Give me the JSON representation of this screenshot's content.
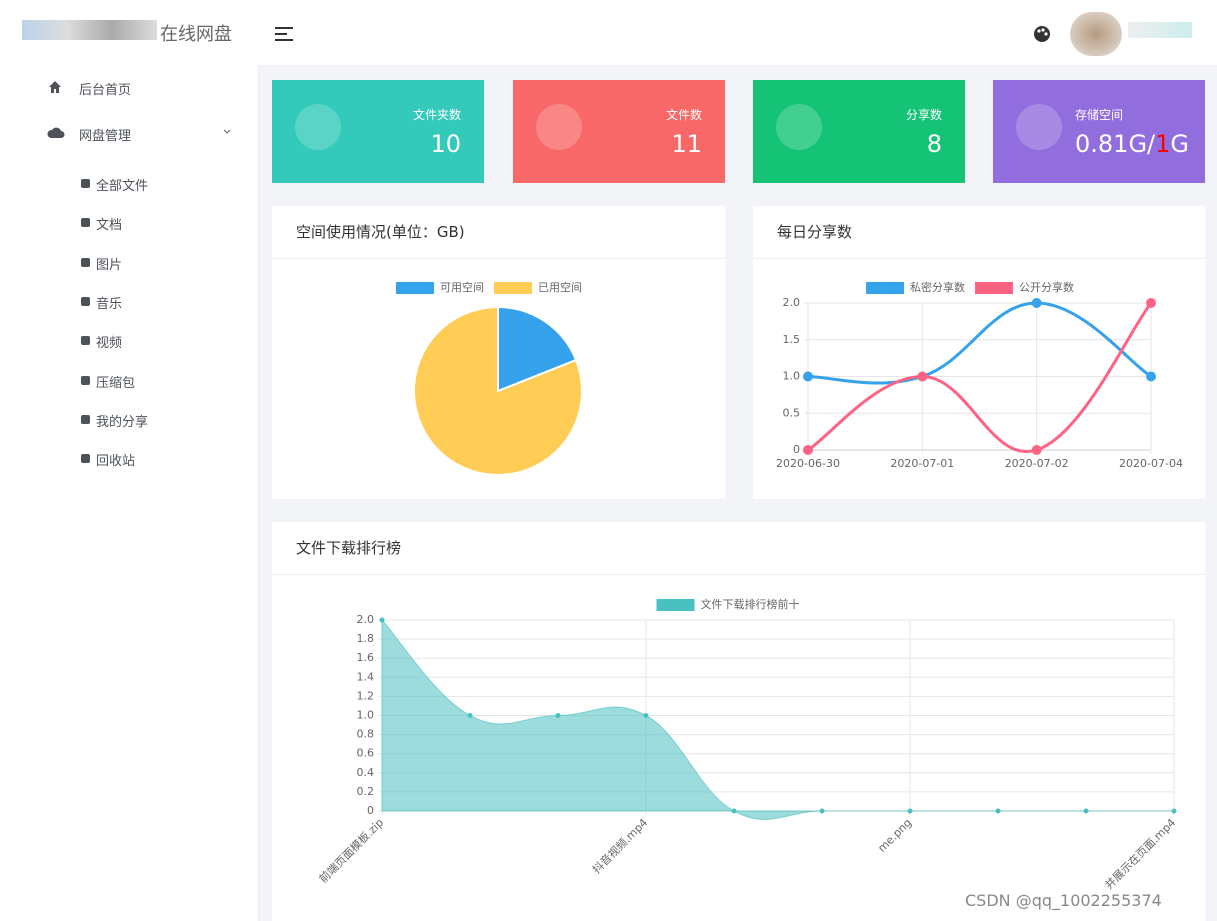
{
  "sidebar": {
    "logo": "在线网盘",
    "menu": [
      "后台首页",
      "网盘管理"
    ],
    "submenu": [
      "全部文件",
      "文档",
      "图片",
      "音乐",
      "视频",
      "压缩包",
      "我的分享",
      "回收站"
    ]
  },
  "stats": [
    {
      "label": "文件夹数",
      "value": 10,
      "color": "#33cabb"
    },
    {
      "label": "文件数",
      "value": 11,
      "color": "#f96868"
    },
    {
      "label": "分享数",
      "value": 8,
      "color": "#15c377"
    }
  ],
  "storage": {
    "label": "存储空间",
    "used": "0.81G",
    "sep": "/",
    "total": "1",
    "unit": "G",
    "color": "#926dde",
    "highlight": "#ff0000"
  },
  "chart_data": [
    {
      "type": "pie",
      "title": "空间使用情况(单位：GB)",
      "categories": [
        "可用空间",
        "已用空间"
      ],
      "values": [
        0.19,
        0.81
      ],
      "colors": [
        "#36a2eb",
        "#ffcd56"
      ]
    },
    {
      "type": "line",
      "title": "每日分享数",
      "categories": [
        "2020-06-30",
        "2020-07-01",
        "2020-07-02",
        "2020-07-04"
      ],
      "series": [
        {
          "name": "私密分享数",
          "color": "#36a2eb",
          "values": [
            1,
            1,
            2,
            1
          ]
        },
        {
          "name": "公开分享数",
          "color": "#ff6384",
          "values": [
            0,
            1,
            0,
            2
          ]
        }
      ],
      "ylim": [
        0,
        2
      ],
      "yticks": [
        0,
        0.5,
        {
          "value": 1,
          "label": "1.0"
        },
        1.5,
        {
          "value": 2,
          "label": "2.0"
        }
      ],
      "grid": true
    },
    {
      "type": "area",
      "title": "文件下载排行榜",
      "categories": [
        "前端页面模板.zip",
        null,
        null,
        "抖音视频.mp4",
        null,
        null,
        "me.png",
        null,
        null,
        "并展示在页面.mp4"
      ],
      "series": [
        {
          "name": "文件下载排行榜前十",
          "color": "#4bc0c0",
          "values": [
            2,
            1,
            1,
            1,
            0,
            0,
            0,
            0,
            0,
            0
          ]
        }
      ],
      "ylim": [
        0,
        2
      ],
      "yticks": [
        0,
        0.2,
        0.4,
        0.6,
        0.8,
        {
          "value": 1,
          "label": "1.0"
        },
        1.2,
        1.4,
        1.6,
        1.8,
        {
          "value": 2,
          "label": "2.0"
        }
      ],
      "grid": true
    }
  ],
  "watermark": "CSDN @qq_1002255374"
}
